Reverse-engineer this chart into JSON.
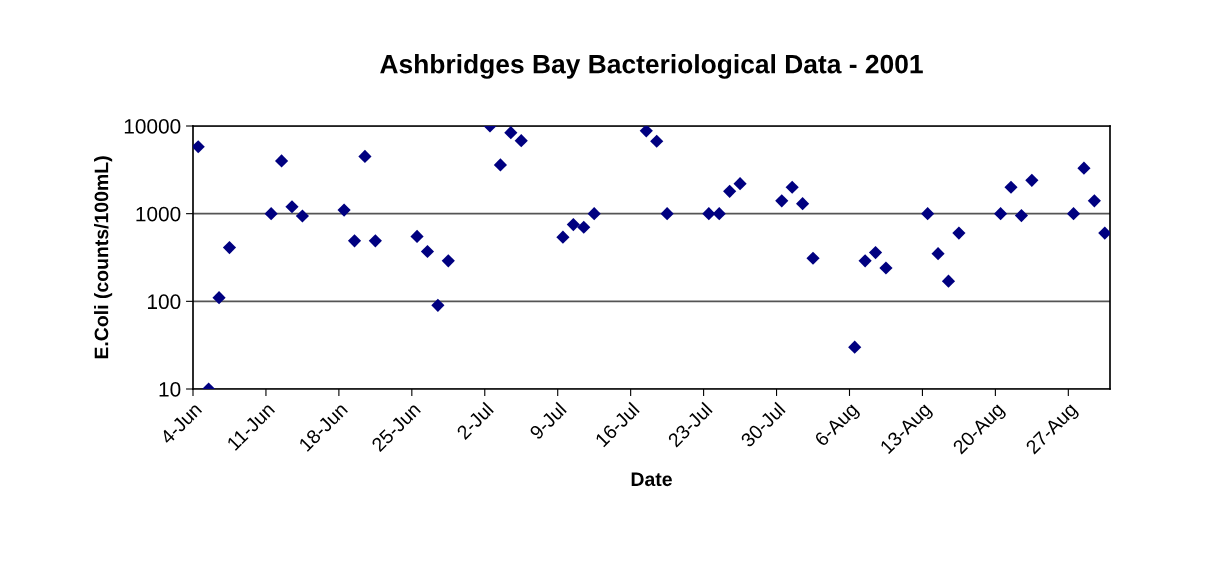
{
  "chart_data": {
    "type": "scatter",
    "title": "Ashbridges Bay Bacteriological Data - 2001",
    "xlabel": "Date",
    "ylabel": "E.Coli (counts/100mL)",
    "x": [
      "2001-06-04T12:00",
      "2001-06-05T12:00",
      "2001-06-06T12:00",
      "2001-06-07T12:00",
      "2001-06-11T12:00",
      "2001-06-12T12:00",
      "2001-06-13T12:00",
      "2001-06-14T12:00",
      "2001-06-18T12:00",
      "2001-06-19T12:00",
      "2001-06-20T12:00",
      "2001-06-21T12:00",
      "2001-06-25T12:00",
      "2001-06-26T12:00",
      "2001-06-27T12:00",
      "2001-06-28T12:00",
      "2001-07-02T12:00",
      "2001-07-03T12:00",
      "2001-07-04T12:00",
      "2001-07-05T12:00",
      "2001-07-09T12:00",
      "2001-07-10T12:00",
      "2001-07-11T12:00",
      "2001-07-12T12:00",
      "2001-07-17T12:00",
      "2001-07-18T12:00",
      "2001-07-19T12:00",
      "2001-07-23T12:00",
      "2001-07-24T12:00",
      "2001-07-25T12:00",
      "2001-07-26T12:00",
      "2001-07-30T12:00",
      "2001-07-31T12:00",
      "2001-08-01T12:00",
      "2001-08-02T12:00",
      "2001-08-06T12:00",
      "2001-08-07T12:00",
      "2001-08-08T12:00",
      "2001-08-09T12:00",
      "2001-08-13T12:00",
      "2001-08-14T12:00",
      "2001-08-15T12:00",
      "2001-08-16T12:00",
      "2001-08-20T12:00",
      "2001-08-21T12:00",
      "2001-08-22T12:00",
      "2001-08-23T12:00",
      "2001-08-27T12:00",
      "2001-08-28T12:00",
      "2001-08-29T12:00",
      "2001-08-30T12:00"
    ],
    "series": [
      {
        "color": "#000080",
        "values": [
          5800,
          10,
          110,
          410,
          1000,
          4000,
          1200,
          940,
          1100,
          490,
          4500,
          490,
          550,
          370,
          90,
          290,
          10000,
          3600,
          8400,
          6800,
          540,
          750,
          700,
          1000,
          8800,
          6700,
          1000,
          1000,
          1000,
          1800,
          2200,
          1400,
          2000,
          1300,
          310,
          30,
          290,
          360,
          240,
          1000,
          350,
          170,
          600,
          1000,
          2000,
          950,
          2400,
          1000,
          3300,
          1400,
          600
        ]
      }
    ],
    "log": "y",
    "ylim": [
      10,
      10000
    ],
    "yticks": [
      10,
      100,
      1000,
      10000
    ],
    "xlim": [
      "2001-06-04",
      "2001-08-31"
    ],
    "xticks": [
      {
        "value": "2001-06-04",
        "label": "4-Jun"
      },
      {
        "value": "2001-06-11",
        "label": "11-Jun"
      },
      {
        "value": "2001-06-18",
        "label": "18-Jun"
      },
      {
        "value": "2001-06-25",
        "label": "25-Jun"
      },
      {
        "value": "2001-07-02",
        "label": "2-Jul"
      },
      {
        "value": "2001-07-09",
        "label": "9-Jul"
      },
      {
        "value": "2001-07-16",
        "label": "16-Jul"
      },
      {
        "value": "2001-07-23",
        "label": "23-Jul"
      },
      {
        "value": "2001-07-30",
        "label": "30-Jul"
      },
      {
        "value": "2001-08-06",
        "label": "6-Aug"
      },
      {
        "value": "2001-08-13",
        "label": "13-Aug"
      },
      {
        "value": "2001-08-20",
        "label": "20-Aug"
      },
      {
        "value": "2001-08-27",
        "label": "27-Aug"
      }
    ],
    "grid": "y",
    "marker": "diamond",
    "legend": false
  }
}
